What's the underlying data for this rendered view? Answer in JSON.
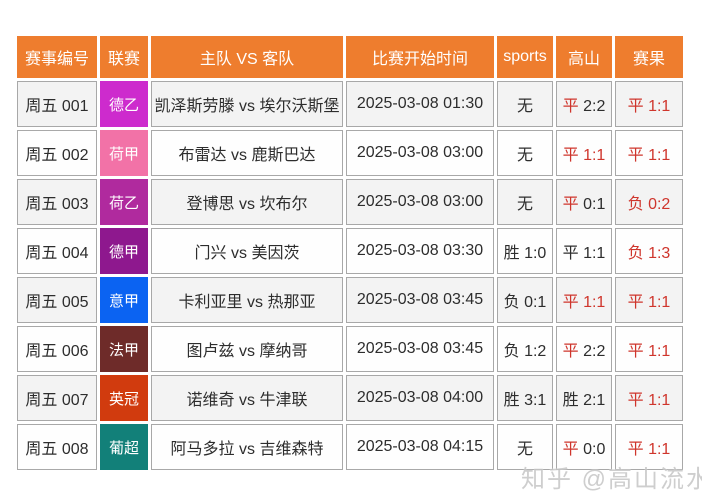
{
  "colors": {
    "page_bg": "#ffffff",
    "header_bg": "#ee7d2e",
    "header_text": "#ffffff",
    "red": "#cf352c",
    "dark": "#2d2d2d",
    "cell_border": "#a8a8a8",
    "row_odd_bg": "#f3f3f3",
    "row_even_bg": "#fefefe"
  },
  "table": {
    "headers": [
      "赛事编号",
      "联赛",
      "主队 VS 客队",
      "比赛开始时间",
      "sports",
      "高山",
      "赛果"
    ],
    "rows": [
      {
        "id": "周五 001",
        "league": "德乙",
        "league_color": "#cd2bcd",
        "teams": "凯泽斯劳滕 vs 埃尔沃斯堡",
        "time": "2025-03-08 01:30",
        "sports": [
          {
            "t": "无",
            "red": false
          }
        ],
        "gaoshan": [
          {
            "t": "平 ",
            "red": true
          },
          {
            "t": "2:2",
            "red": false
          }
        ],
        "result": [
          {
            "t": "平 1:1",
            "red": true
          }
        ]
      },
      {
        "id": "周五 002",
        "league": "荷甲",
        "league_color": "#f272a7",
        "teams": "布雷达 vs 鹿斯巴达",
        "time": "2025-03-08 03:00",
        "sports": [
          {
            "t": "无",
            "red": false
          }
        ],
        "gaoshan": [
          {
            "t": "平 1:1",
            "red": true
          }
        ],
        "result": [
          {
            "t": "平 1:1",
            "red": true
          }
        ]
      },
      {
        "id": "周五 003",
        "league": "荷乙",
        "league_color": "#b02a9e",
        "teams": "登博思 vs 坎布尔",
        "time": "2025-03-08 03:00",
        "sports": [
          {
            "t": "无",
            "red": false
          }
        ],
        "gaoshan": [
          {
            "t": "平 ",
            "red": true
          },
          {
            "t": "0:1",
            "red": false
          }
        ],
        "result": [
          {
            "t": "负 0:2",
            "red": true
          }
        ]
      },
      {
        "id": "周五 004",
        "league": "德甲",
        "league_color": "#8e188e",
        "teams": "门兴 vs 美因茨",
        "time": "2025-03-08 03:30",
        "sports": [
          {
            "t": "胜 1:0",
            "red": false
          }
        ],
        "gaoshan": [
          {
            "t": "平 1:1",
            "red": false
          }
        ],
        "result": [
          {
            "t": "负 1:3",
            "red": true
          }
        ]
      },
      {
        "id": "周五 005",
        "league": "意甲",
        "league_color": "#0b63f2",
        "teams": "卡利亚里 vs 热那亚",
        "time": "2025-03-08 03:45",
        "sports": [
          {
            "t": "负 0:1",
            "red": false
          }
        ],
        "gaoshan": [
          {
            "t": "平 1:1",
            "red": true
          }
        ],
        "result": [
          {
            "t": "平 1:1",
            "red": true
          }
        ]
      },
      {
        "id": "周五 006",
        "league": "法甲",
        "league_color": "#6e2b29",
        "teams": "图卢兹 vs 摩纳哥",
        "time": "2025-03-08 03:45",
        "sports": [
          {
            "t": "负 1:2",
            "red": false
          }
        ],
        "gaoshan": [
          {
            "t": "平 ",
            "red": true
          },
          {
            "t": "2:2",
            "red": false
          }
        ],
        "result": [
          {
            "t": "平 1:1",
            "red": true
          }
        ]
      },
      {
        "id": "周五 007",
        "league": "英冠",
        "league_color": "#d13b0e",
        "teams": "诺维奇 vs 牛津联",
        "time": "2025-03-08 04:00",
        "sports": [
          {
            "t": "胜 3:1",
            "red": false
          }
        ],
        "gaoshan": [
          {
            "t": "胜 2:1",
            "red": false
          }
        ],
        "result": [
          {
            "t": "平 1:1",
            "red": true
          }
        ]
      },
      {
        "id": "周五 008",
        "league": "葡超",
        "league_color": "#128079",
        "teams": "阿马多拉 vs 吉维森特",
        "time": "2025-03-08 04:15",
        "sports": [
          {
            "t": "无",
            "red": false
          }
        ],
        "gaoshan": [
          {
            "t": "平 ",
            "red": true
          },
          {
            "t": "0:0",
            "red": false
          }
        ],
        "result": [
          {
            "t": "平 1:1",
            "red": true
          }
        ]
      }
    ]
  },
  "watermark": {
    "text": "知乎 @高山流水"
  }
}
